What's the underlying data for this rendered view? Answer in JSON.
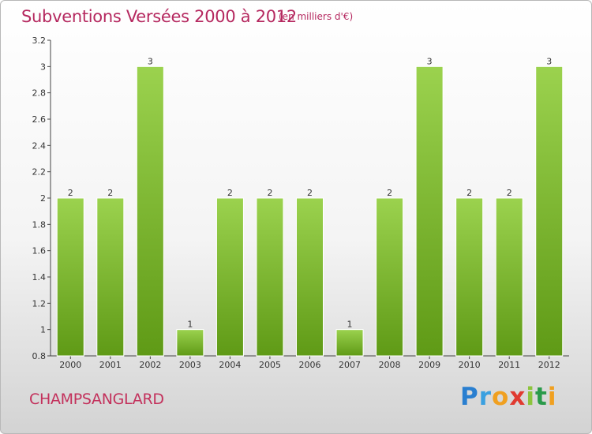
{
  "header": {
    "title": "Subventions Versées 2000 à 2012",
    "subtitle": "(en milliers d'€)"
  },
  "footer": {
    "commune": "CHAMPSANGLARD",
    "logo_letters": [
      "P",
      "r",
      "o",
      "x",
      "i",
      "t",
      "i"
    ],
    "logo_colors": [
      "#2a7fd0",
      "#3aa0e0",
      "#f0a020",
      "#e03a30",
      "#8cc43c",
      "#2a9a4a",
      "#f0a020"
    ]
  },
  "colors": {
    "bar_light": "#9bd24e",
    "bar_dark": "#5f9a16",
    "title": "#b5285f"
  },
  "chart_data": {
    "type": "bar",
    "title": "Subventions Versées 2000 à 2012",
    "subtitle": "(en milliers d'€)",
    "categories": [
      "2000",
      "2001",
      "2002",
      "2003",
      "2004",
      "2005",
      "2006",
      "2007",
      "2008",
      "2009",
      "2010",
      "2011",
      "2012"
    ],
    "values": [
      2,
      2,
      3,
      1,
      2,
      2,
      2,
      1,
      2,
      3,
      2,
      2,
      3
    ],
    "data_labels": [
      "2",
      "2",
      "3",
      "1",
      "2",
      "2",
      "2",
      "1",
      "2",
      "3",
      "2",
      "2",
      "3"
    ],
    "ylim": [
      0.8,
      3.2
    ],
    "yticks": [
      0.8,
      1,
      1.2,
      1.4,
      1.6,
      1.8,
      2,
      2.2,
      2.4,
      2.6,
      2.8,
      3,
      3.2
    ],
    "ytick_labels": [
      "0.8",
      "1",
      "1.2",
      "1.4",
      "1.6",
      "1.8",
      "2",
      "2.2",
      "2.4",
      "2.6",
      "2.8",
      "3",
      "3.2"
    ],
    "grid": false,
    "legend": "none"
  }
}
